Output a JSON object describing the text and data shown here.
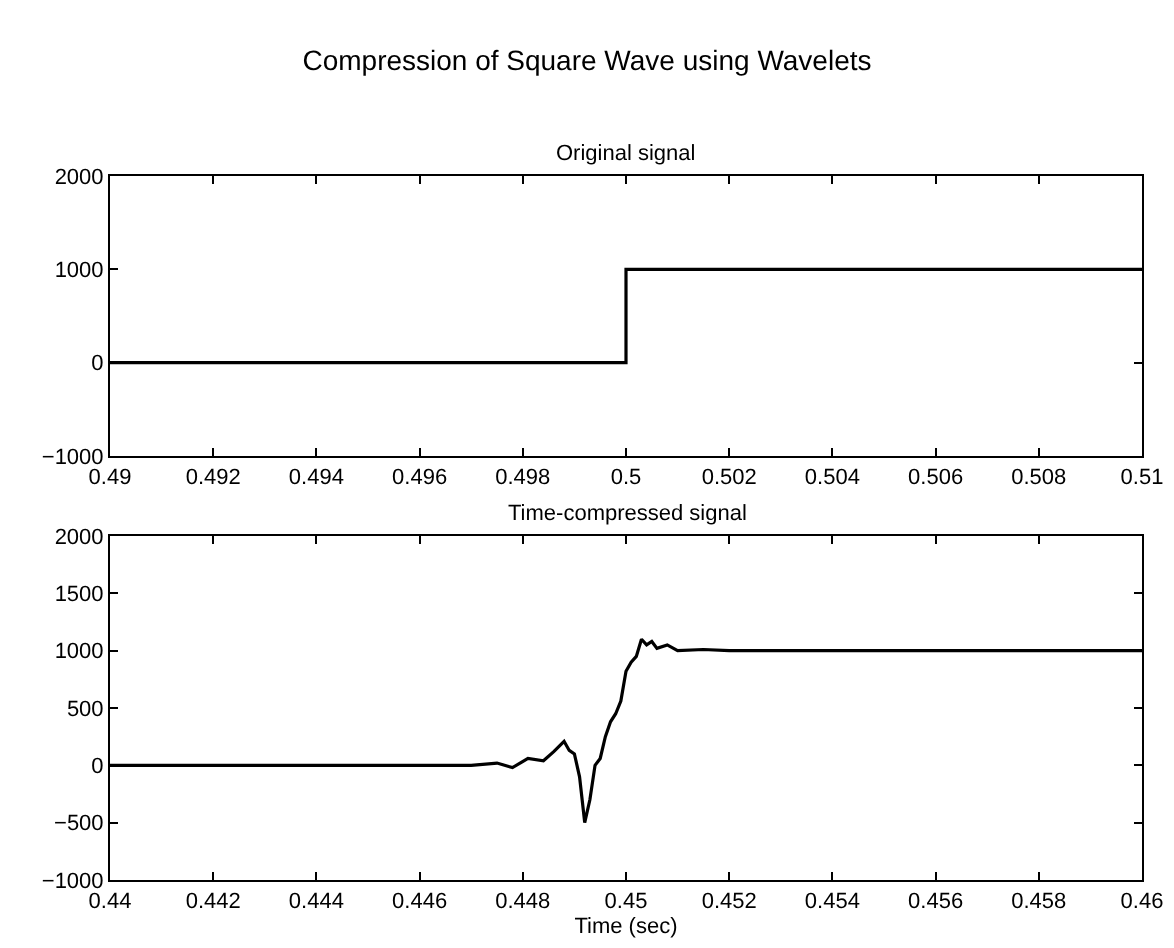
{
  "chart_data": [
    {
      "type": "line",
      "title": "Compression of Square Wave using Wavelets",
      "subtitle": "Original signal",
      "x": [
        0.49,
        0.5,
        0.5,
        0.51
      ],
      "series": [
        {
          "color": "#000000",
          "values": [
            0,
            0,
            1000,
            1000
          ]
        }
      ],
      "xlim": [
        0.49,
        0.51
      ],
      "xticks": [
        0.49,
        0.492,
        0.494,
        0.496,
        0.498,
        0.5,
        0.502,
        0.504,
        0.506,
        0.508,
        0.51
      ],
      "ylim": [
        -1000,
        2000
      ],
      "yticks": [
        -1000,
        0,
        1000,
        2000
      ],
      "grid": false
    },
    {
      "type": "line",
      "title": "Time-compressed signal",
      "xlabel": "Time (sec)",
      "x": [
        0.44,
        0.4465,
        0.447,
        0.4475,
        0.4478,
        0.4481,
        0.4484,
        0.4486,
        0.4488,
        0.4489,
        0.449,
        0.4491,
        0.4492,
        0.4493,
        0.4494,
        0.4495,
        0.4496,
        0.4497,
        0.4498,
        0.4499,
        0.45,
        0.4501,
        0.4502,
        0.4503,
        0.4504,
        0.4505,
        0.4506,
        0.4508,
        0.451,
        0.4515,
        0.452,
        0.46
      ],
      "series": [
        {
          "color": "#000000",
          "values": [
            0,
            0,
            0,
            20,
            -20,
            60,
            40,
            120,
            210,
            130,
            100,
            -100,
            -500,
            -300,
            0,
            60,
            250,
            380,
            450,
            560,
            820,
            900,
            950,
            1100,
            1050,
            1080,
            1020,
            1050,
            1000,
            1010,
            1000,
            1000
          ]
        }
      ],
      "xlim": [
        0.44,
        0.46
      ],
      "xticks": [
        0.44,
        0.442,
        0.444,
        0.446,
        0.448,
        0.45,
        0.452,
        0.454,
        0.456,
        0.458,
        0.46
      ],
      "ylim": [
        -1000,
        2000
      ],
      "yticks": [
        -1000,
        -500,
        0,
        500,
        1000,
        1500,
        2000
      ],
      "grid": false
    }
  ]
}
